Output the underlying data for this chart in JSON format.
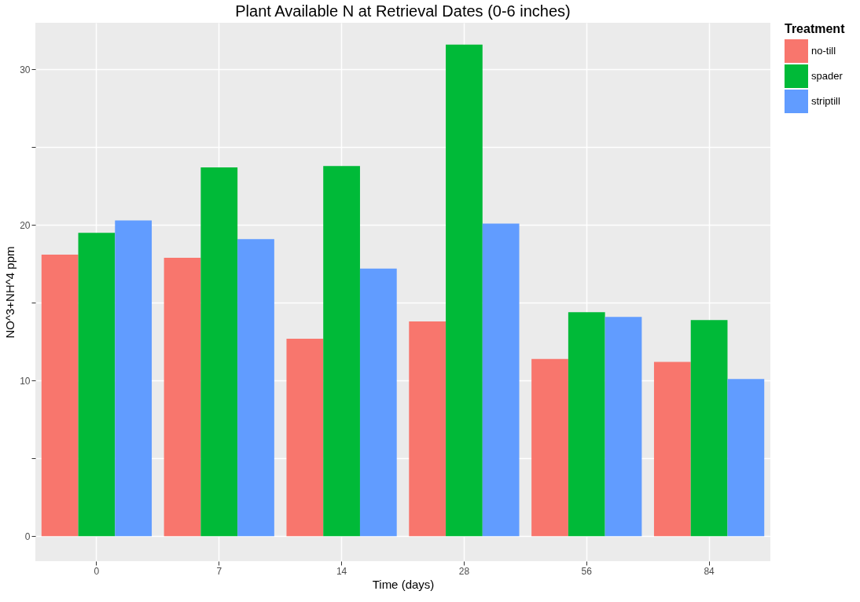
{
  "chart_data": {
    "type": "bar",
    "title": "Plant Available N at Retrieval Dates (0-6 inches)",
    "xlabel": "Time (days)",
    "ylabel": "NO^3+NH^4 ppm",
    "legend_title": "Treatment",
    "categories": [
      "0",
      "7",
      "14",
      "28",
      "56",
      "84"
    ],
    "series": [
      {
        "name": "no-till",
        "color": "#f8766d",
        "values": [
          18.1,
          17.9,
          12.7,
          13.8,
          11.4,
          11.2
        ]
      },
      {
        "name": "spader",
        "color": "#00ba38",
        "values": [
          19.5,
          23.7,
          23.8,
          31.6,
          14.4,
          13.9
        ]
      },
      {
        "name": "striptill",
        "color": "#619cff",
        "values": [
          20.3,
          19.1,
          17.2,
          20.1,
          14.1,
          10.1
        ]
      }
    ],
    "ylim": [
      -1.6,
      33.0
    ],
    "yticks": [
      0,
      {
        "value": 5,
        "label": null
      },
      10,
      {
        "value": 15,
        "label": null
      },
      20,
      {
        "value": 25,
        "label": null
      },
      30
    ],
    "grid": true,
    "legend": "right"
  }
}
